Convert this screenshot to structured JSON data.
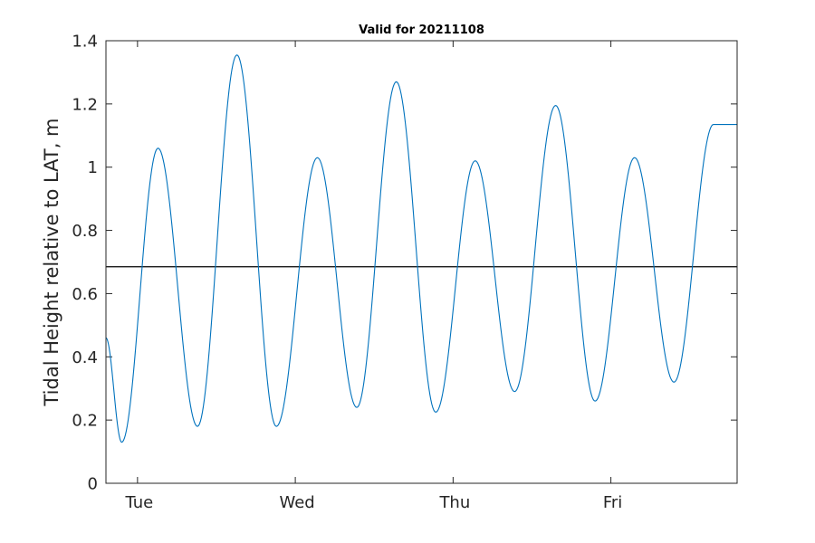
{
  "chart_data": {
    "type": "line",
    "title": "Valid for 20211108",
    "xlabel": "",
    "ylabel": "Tidal Height relative to LAT, m",
    "x_unit": "days",
    "xlim": [
      -0.2,
      3.8
    ],
    "ylim": [
      0,
      1.4
    ],
    "yticks": [
      0,
      0.2,
      0.4,
      0.6,
      0.8,
      1,
      1.2,
      1.4
    ],
    "ytick_labels": [
      "0",
      "0.2",
      "0.4",
      "0.6",
      "0.8",
      "1",
      "1.2",
      "1.4"
    ],
    "xticks": [
      0,
      1,
      2,
      3
    ],
    "xtick_labels": [
      "Tue",
      "Wed",
      "Thu",
      "Fri"
    ],
    "grid": false,
    "line_color": "#0072BD",
    "reference_line": {
      "y": 0.685,
      "color": "#000000"
    },
    "series": [
      {
        "x": [
          -0.2,
          -0.1,
          0.13,
          0.38,
          0.63,
          0.88,
          1.14,
          1.39,
          1.64,
          1.89,
          2.14,
          2.39,
          2.65,
          2.9,
          3.15,
          3.4,
          3.65,
          3.8
        ],
        "values": [
          0.46,
          0.13,
          1.06,
          0.18,
          1.355,
          0.18,
          1.03,
          0.24,
          1.27,
          0.225,
          1.02,
          0.29,
          1.195,
          0.26,
          1.03,
          0.32,
          1.135,
          1.135
        ]
      }
    ]
  }
}
